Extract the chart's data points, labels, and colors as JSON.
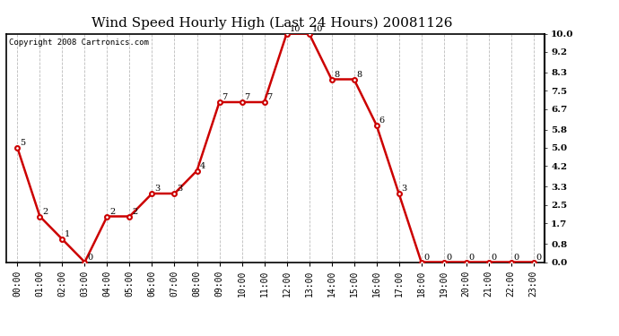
{
  "title": "Wind Speed Hourly High (Last 24 Hours) 20081126",
  "copyright": "Copyright 2008 Cartronics.com",
  "hours": [
    "00:00",
    "01:00",
    "02:00",
    "03:00",
    "04:00",
    "05:00",
    "06:00",
    "07:00",
    "08:00",
    "09:00",
    "10:00",
    "11:00",
    "12:00",
    "13:00",
    "14:00",
    "15:00",
    "16:00",
    "17:00",
    "18:00",
    "19:00",
    "20:00",
    "21:00",
    "22:00",
    "23:00"
  ],
  "values": [
    5,
    2,
    1,
    0,
    2,
    2,
    3,
    3,
    4,
    7,
    7,
    7,
    10,
    10,
    8,
    8,
    6,
    3,
    0,
    0,
    0,
    0,
    0,
    0
  ],
  "ylim": [
    0,
    10.0
  ],
  "yticks": [
    0.0,
    0.8,
    1.7,
    2.5,
    3.3,
    4.2,
    5.0,
    5.8,
    6.7,
    7.5,
    8.3,
    9.2,
    10.0
  ],
  "line_color": "#cc0000",
  "marker_color": "#cc0000",
  "bg_color": "#ffffff",
  "grid_color": "#bbbbbb",
  "title_fontsize": 11,
  "copyright_fontsize": 6.5,
  "annotation_fontsize": 7
}
